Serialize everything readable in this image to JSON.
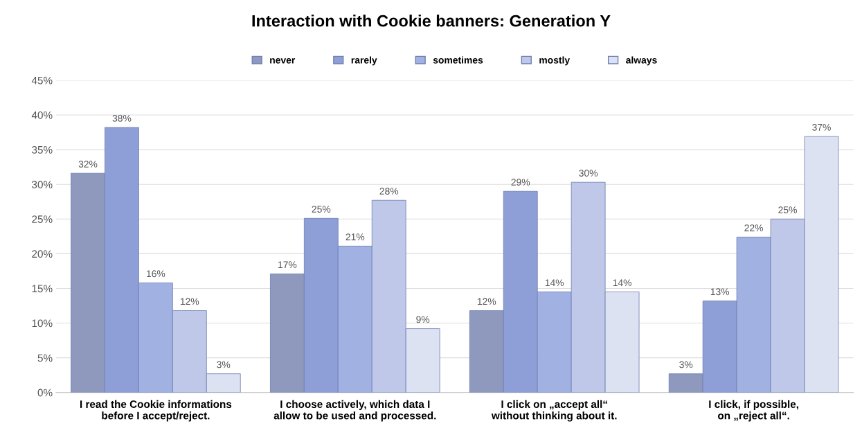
{
  "chart_data": {
    "type": "bar",
    "title": "Interaction with Cookie banners: Generation Y",
    "categories": [
      "I read the Cookie informations before I accept/reject.",
      "I choose actively, which data I allow to be used and processed.",
      "I click on „accept all“ without thinking about it.",
      "I click, if possible, on „reject all“."
    ],
    "series": [
      {
        "name": "never",
        "color": "#8e99bd",
        "values": [
          31.6,
          17.1,
          11.8,
          2.7
        ],
        "value_labels": [
          "32%",
          "17%",
          "12%",
          "3%"
        ]
      },
      {
        "name": "rarely",
        "color": "#8d9fd6",
        "values": [
          38.2,
          25.1,
          29.0,
          13.2
        ],
        "value_labels": [
          "38%",
          "25%",
          "29%",
          "13%"
        ]
      },
      {
        "name": "sometimes",
        "color": "#a1b1e2",
        "values": [
          15.8,
          21.1,
          14.5,
          22.4
        ],
        "value_labels": [
          "16%",
          "21%",
          "14%",
          "22%"
        ]
      },
      {
        "name": "mostly",
        "color": "#bfc8e8",
        "values": [
          11.8,
          27.7,
          30.3,
          25.0
        ],
        "value_labels": [
          "12%",
          "28%",
          "30%",
          "25%"
        ]
      },
      {
        "name": "always",
        "color": "#dde2f2",
        "values": [
          2.7,
          9.2,
          14.5,
          36.9
        ],
        "value_labels": [
          "3%",
          "9%",
          "14%",
          "37%"
        ]
      }
    ],
    "ylim": [
      0,
      45
    ],
    "yticks": [
      {
        "value": 0,
        "label": "0%"
      },
      {
        "value": 5,
        "label": "5%"
      },
      {
        "value": 10,
        "label": "10%"
      },
      {
        "value": 15,
        "label": "15%"
      },
      {
        "value": 20,
        "label": "20%"
      },
      {
        "value": 25,
        "label": "25%"
      },
      {
        "value": 30,
        "label": "30%"
      },
      {
        "value": 35,
        "label": "35%"
      },
      {
        "value": 40,
        "label": "40%"
      },
      {
        "value": 45,
        "label": "45%"
      }
    ],
    "grid": "y",
    "legend": "top"
  }
}
